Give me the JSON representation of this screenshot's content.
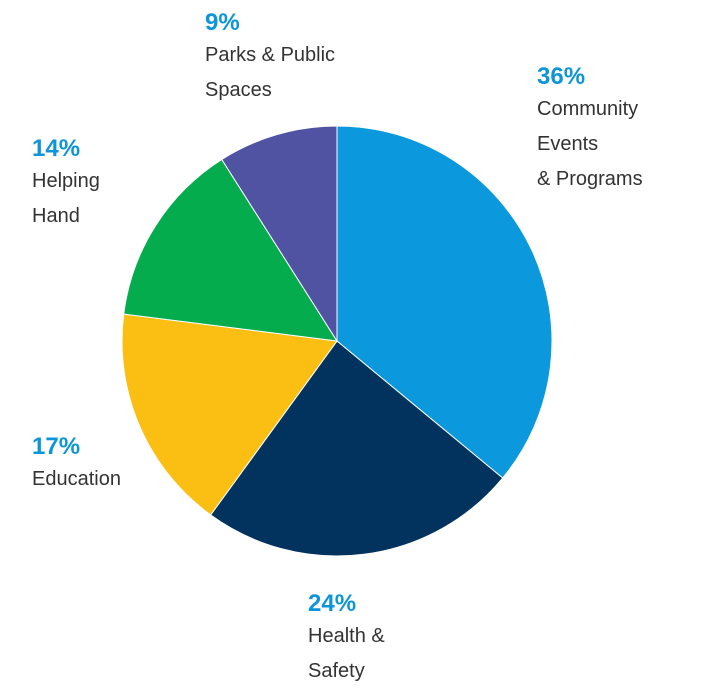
{
  "chart_data": {
    "type": "pie",
    "slices": [
      {
        "value": 36,
        "percent_label": "36%",
        "name_lines": [
          "Community",
          "Events",
          "& Programs"
        ],
        "color": "#0c98dc"
      },
      {
        "value": 24,
        "percent_label": "24%",
        "name_lines": [
          "Health &",
          "Safety"
        ],
        "color": "#02335e"
      },
      {
        "value": 17,
        "percent_label": "17%",
        "name_lines": [
          "Education"
        ],
        "color": "#fbbf14"
      },
      {
        "value": 14,
        "percent_label": "14%",
        "name_lines": [
          "Helping",
          "Hand"
        ],
        "color": "#05ac4e"
      },
      {
        "value": 9,
        "percent_label": "9%",
        "name_lines": [
          "Parks & Public",
          "Spaces"
        ],
        "color": "#4f53a2"
      }
    ],
    "percent_label_color": "#0c95d8",
    "start_angle": "12 o'clock",
    "direction": "clockwise"
  }
}
